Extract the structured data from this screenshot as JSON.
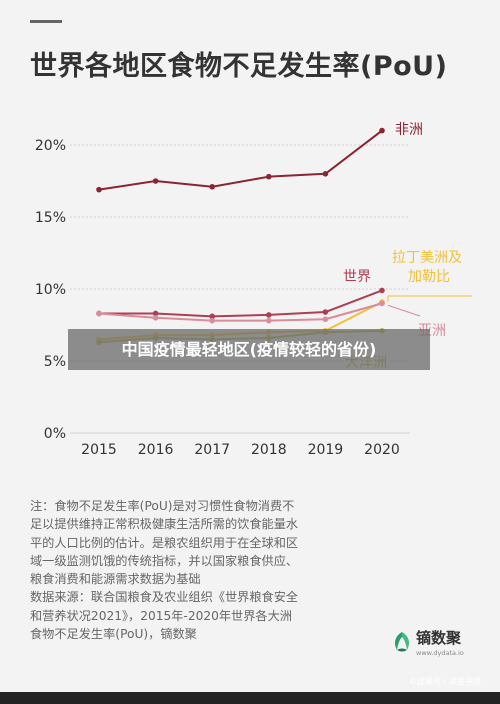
{
  "title": "世界各地区食物不足发生率(PoU)",
  "overlay_caption": "中国疫情最轻地区(疫情较轻的省份)",
  "note_lines": [
    "注：食物不足发生率(PoU)是对习惯性食物消费不",
    "足以提供维持正常积极健康生活所需的饮食能量水",
    "平的人口比例的估计。是粮农组织用于在全球和区",
    "域一级监测饥饿的传统指标，并以国家粮食供应、",
    "粮食消费和能源需求数据为基础",
    "数据来源：联合国粮食及农业组织《世界粮食安全",
    "和营养状况2021》，2015年-2020年世界各大洲",
    "食物不足发生率(PoU)，镝数聚"
  ],
  "logo": {
    "name": "镝数聚",
    "url": "www.dydata.io"
  },
  "watermark": "©搜狐号 / 读楚中国",
  "colors": {
    "africa": "#8b2433",
    "world": "#ad3f55",
    "latam": "#f2c13a",
    "asia": "#d98c9a",
    "oceania": "#b9b53c",
    "axis_text": "#333333",
    "grid": "#d0d0d0",
    "bg": "#f3f3f3"
  },
  "chart_data": {
    "type": "line",
    "title": "世界各地区食物不足发生率(PoU)",
    "x": [
      "2015",
      "2016",
      "2017",
      "2018",
      "2019",
      "2020"
    ],
    "y_ticks": [
      "0%",
      "5%",
      "10%",
      "15%",
      "20%"
    ],
    "ylim": [
      0,
      22
    ],
    "grid": true,
    "series": [
      {
        "name": "非洲",
        "key": "africa",
        "values": [
          16.9,
          17.5,
          17.1,
          17.8,
          18.0,
          21.0
        ]
      },
      {
        "name": "世界",
        "key": "world",
        "values": [
          8.3,
          8.3,
          8.1,
          8.2,
          8.4,
          9.9
        ]
      },
      {
        "name": "拉丁美洲及加勒比",
        "key": "latam",
        "values": [
          6.5,
          6.8,
          6.8,
          7.0,
          7.1,
          9.1
        ]
      },
      {
        "name": "亚洲",
        "key": "asia",
        "values": [
          8.3,
          8.0,
          7.8,
          7.8,
          7.9,
          9.0
        ]
      },
      {
        "name": "大洋洲",
        "key": "oceania",
        "values": [
          6.3,
          6.6,
          6.5,
          6.6,
          7.0,
          7.1
        ]
      }
    ],
    "labels": {
      "africa": "非洲",
      "world": "世界",
      "latam_1": "拉丁美洲及",
      "latam_2": "加勒比",
      "asia": "亚洲",
      "oceania": "大洋洲"
    }
  }
}
